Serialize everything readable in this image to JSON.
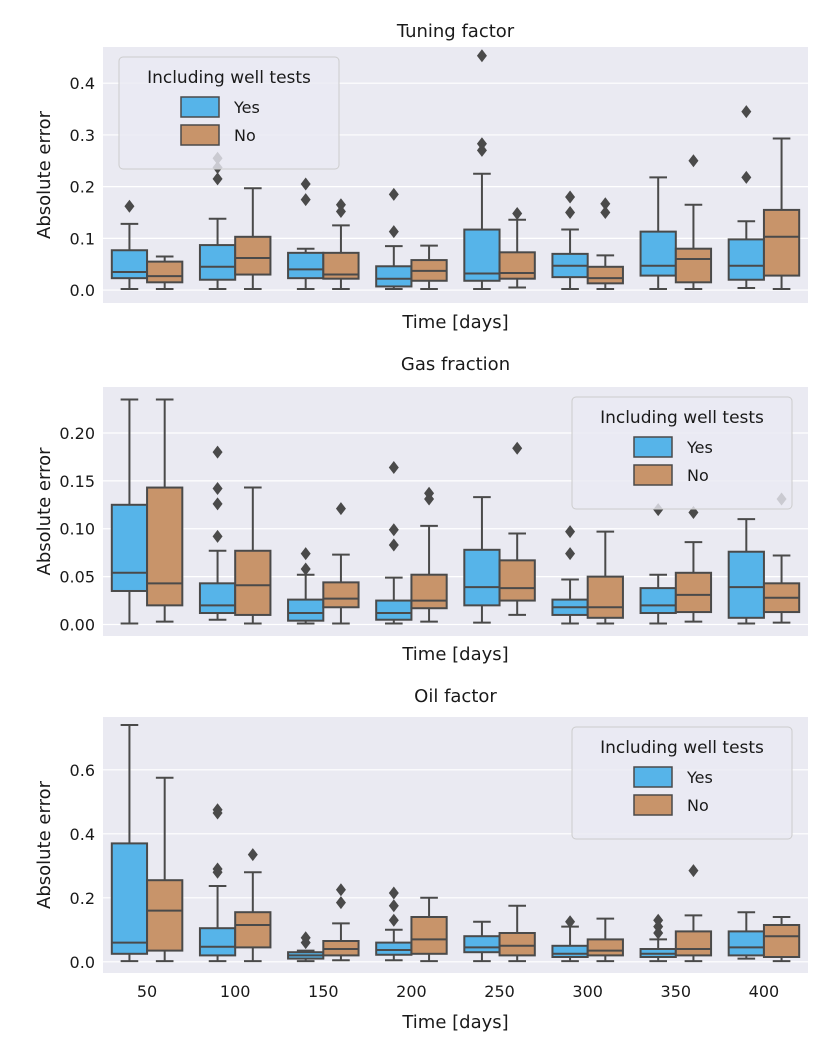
{
  "chart_data": [
    {
      "type": "box",
      "title": "Tuning factor",
      "xlabel": "Time [days]",
      "ylabel": "Absolute error",
      "show_xticklabels": false,
      "ylim": [
        -0.025,
        0.47
      ],
      "yticks": [
        0.0,
        0.1,
        0.2,
        0.3,
        0.4
      ],
      "ytick_labels": [
        "0.0",
        "0.1",
        "0.2",
        "0.3",
        "0.4"
      ],
      "legend": {
        "title": "Including well tests",
        "placement": "upper-left",
        "entries": [
          "Yes",
          "No"
        ]
      },
      "categories": [
        "50",
        "100",
        "150",
        "200",
        "250",
        "300",
        "350",
        "400"
      ],
      "series": [
        {
          "name": "Yes",
          "color": "#56b4e9",
          "boxes": [
            {
              "min": 0.002,
              "q1": 0.023,
              "median": 0.035,
              "q3": 0.077,
              "max": 0.128,
              "fliers": [
                0.162
              ]
            },
            {
              "min": 0.002,
              "q1": 0.02,
              "median": 0.045,
              "q3": 0.087,
              "max": 0.138,
              "fliers": [
                0.215,
                0.237,
                0.255
              ]
            },
            {
              "min": 0.002,
              "q1": 0.023,
              "median": 0.04,
              "q3": 0.072,
              "max": 0.08,
              "fliers": [
                0.175,
                0.205
              ]
            },
            {
              "min": 0.002,
              "q1": 0.007,
              "median": 0.022,
              "q3": 0.046,
              "max": 0.085,
              "fliers": [
                0.113,
                0.185
              ]
            },
            {
              "min": 0.002,
              "q1": 0.018,
              "median": 0.032,
              "q3": 0.117,
              "max": 0.225,
              "fliers": [
                0.27,
                0.283,
                0.453
              ]
            },
            {
              "min": 0.002,
              "q1": 0.025,
              "median": 0.047,
              "q3": 0.07,
              "max": 0.117,
              "fliers": [
                0.15,
                0.18
              ]
            },
            {
              "min": 0.002,
              "q1": 0.028,
              "median": 0.047,
              "q3": 0.113,
              "max": 0.218,
              "fliers": []
            },
            {
              "min": 0.004,
              "q1": 0.02,
              "median": 0.047,
              "q3": 0.098,
              "max": 0.133,
              "fliers": [
                0.218,
                0.345
              ]
            }
          ]
        },
        {
          "name": "No",
          "color": "#c8946a",
          "boxes": [
            {
              "min": 0.002,
              "q1": 0.015,
              "median": 0.027,
              "q3": 0.055,
              "max": 0.065,
              "fliers": []
            },
            {
              "min": 0.002,
              "q1": 0.03,
              "median": 0.062,
              "q3": 0.103,
              "max": 0.197,
              "fliers": []
            },
            {
              "min": 0.002,
              "q1": 0.022,
              "median": 0.03,
              "q3": 0.072,
              "max": 0.125,
              "fliers": [
                0.152,
                0.165
              ]
            },
            {
              "min": 0.002,
              "q1": 0.018,
              "median": 0.037,
              "q3": 0.058,
              "max": 0.086,
              "fliers": []
            },
            {
              "min": 0.005,
              "q1": 0.022,
              "median": 0.033,
              "q3": 0.073,
              "max": 0.136,
              "fliers": [
                0.148
              ]
            },
            {
              "min": 0.002,
              "q1": 0.013,
              "median": 0.023,
              "q3": 0.045,
              "max": 0.067,
              "fliers": [
                0.15,
                0.167
              ]
            },
            {
              "min": 0.002,
              "q1": 0.015,
              "median": 0.06,
              "q3": 0.08,
              "max": 0.165,
              "fliers": [
                0.25
              ]
            },
            {
              "min": 0.002,
              "q1": 0.028,
              "median": 0.103,
              "q3": 0.155,
              "max": 0.293,
              "fliers": []
            }
          ]
        }
      ]
    },
    {
      "type": "box",
      "title": "Gas fraction",
      "xlabel": "Time [days]",
      "ylabel": "Absolute error",
      "show_xticklabels": false,
      "ylim": [
        -0.012,
        0.248
      ],
      "yticks": [
        0.0,
        0.05,
        0.1,
        0.15,
        0.2
      ],
      "ytick_labels": [
        "0.00",
        "0.05",
        "0.10",
        "0.15",
        "0.20"
      ],
      "legend": {
        "title": "Including well tests",
        "placement": "upper-right",
        "entries": [
          "Yes",
          "No"
        ]
      },
      "categories": [
        "50",
        "100",
        "150",
        "200",
        "250",
        "300",
        "350",
        "400"
      ],
      "series": [
        {
          "name": "Yes",
          "color": "#56b4e9",
          "boxes": [
            {
              "min": 0.001,
              "q1": 0.035,
              "median": 0.054,
              "q3": 0.125,
              "max": 0.235,
              "fliers": []
            },
            {
              "min": 0.005,
              "q1": 0.012,
              "median": 0.02,
              "q3": 0.043,
              "max": 0.077,
              "fliers": [
                0.092,
                0.126,
                0.142,
                0.18
              ]
            },
            {
              "min": 0.001,
              "q1": 0.004,
              "median": 0.012,
              "q3": 0.026,
              "max": 0.052,
              "fliers": [
                0.058,
                0.074
              ]
            },
            {
              "min": 0.001,
              "q1": 0.005,
              "median": 0.012,
              "q3": 0.025,
              "max": 0.049,
              "fliers": [
                0.083,
                0.099,
                0.164
              ]
            },
            {
              "min": 0.002,
              "q1": 0.02,
              "median": 0.039,
              "q3": 0.078,
              "max": 0.133,
              "fliers": []
            },
            {
              "min": 0.001,
              "q1": 0.01,
              "median": 0.018,
              "q3": 0.026,
              "max": 0.047,
              "fliers": [
                0.074,
                0.097
              ]
            },
            {
              "min": 0.001,
              "q1": 0.012,
              "median": 0.02,
              "q3": 0.038,
              "max": 0.052,
              "fliers": [
                0.12
              ]
            },
            {
              "min": 0.001,
              "q1": 0.007,
              "median": 0.039,
              "q3": 0.076,
              "max": 0.11,
              "fliers": []
            }
          ]
        },
        {
          "name": "No",
          "color": "#c8946a",
          "boxes": [
            {
              "min": 0.003,
              "q1": 0.02,
              "median": 0.043,
              "q3": 0.143,
              "max": 0.235,
              "fliers": []
            },
            {
              "min": 0.001,
              "q1": 0.01,
              "median": 0.041,
              "q3": 0.077,
              "max": 0.143,
              "fliers": []
            },
            {
              "min": 0.001,
              "q1": 0.018,
              "median": 0.027,
              "q3": 0.044,
              "max": 0.073,
              "fliers": [
                0.121
              ]
            },
            {
              "min": 0.003,
              "q1": 0.017,
              "median": 0.025,
              "q3": 0.052,
              "max": 0.103,
              "fliers": [
                0.131,
                0.137
              ]
            },
            {
              "min": 0.01,
              "q1": 0.025,
              "median": 0.038,
              "q3": 0.067,
              "max": 0.095,
              "fliers": [
                0.184
              ]
            },
            {
              "min": 0.001,
              "q1": 0.007,
              "median": 0.018,
              "q3": 0.05,
              "max": 0.097,
              "fliers": []
            },
            {
              "min": 0.003,
              "q1": 0.013,
              "median": 0.031,
              "q3": 0.054,
              "max": 0.086,
              "fliers": [
                0.117
              ]
            },
            {
              "min": 0.002,
              "q1": 0.013,
              "median": 0.028,
              "q3": 0.043,
              "max": 0.072,
              "fliers": [
                0.131
              ]
            }
          ]
        }
      ]
    },
    {
      "type": "box",
      "title": "Oil factor",
      "xlabel": "Time [days]",
      "ylabel": "Absolute error",
      "show_xticklabels": true,
      "ylim": [
        -0.035,
        0.765
      ],
      "yticks": [
        0.0,
        0.2,
        0.4,
        0.6
      ],
      "ytick_labels": [
        "0.0",
        "0.2",
        "0.4",
        "0.6"
      ],
      "legend": {
        "title": "Including well tests",
        "placement": "upper-right",
        "entries": [
          "Yes",
          "No"
        ]
      },
      "categories": [
        "50",
        "100",
        "150",
        "200",
        "250",
        "300",
        "350",
        "400"
      ],
      "series": [
        {
          "name": "Yes",
          "color": "#56b4e9",
          "boxes": [
            {
              "min": 0.002,
              "q1": 0.025,
              "median": 0.06,
              "q3": 0.37,
              "max": 0.74,
              "fliers": []
            },
            {
              "min": 0.002,
              "q1": 0.02,
              "median": 0.047,
              "q3": 0.105,
              "max": 0.237,
              "fliers": [
                0.28,
                0.29,
                0.465,
                0.475
              ]
            },
            {
              "min": 0.002,
              "q1": 0.01,
              "median": 0.02,
              "q3": 0.03,
              "max": 0.035,
              "fliers": [
                0.06,
                0.075
              ]
            },
            {
              "min": 0.005,
              "q1": 0.022,
              "median": 0.037,
              "q3": 0.06,
              "max": 0.1,
              "fliers": [
                0.13,
                0.175,
                0.215
              ]
            },
            {
              "min": 0.002,
              "q1": 0.03,
              "median": 0.045,
              "q3": 0.08,
              "max": 0.125,
              "fliers": []
            },
            {
              "min": 0.002,
              "q1": 0.015,
              "median": 0.025,
              "q3": 0.05,
              "max": 0.11,
              "fliers": [
                0.125
              ]
            },
            {
              "min": 0.002,
              "q1": 0.015,
              "median": 0.025,
              "q3": 0.04,
              "max": 0.07,
              "fliers": [
                0.09,
                0.11,
                0.13
              ]
            },
            {
              "min": 0.01,
              "q1": 0.02,
              "median": 0.045,
              "q3": 0.095,
              "max": 0.155,
              "fliers": []
            }
          ]
        },
        {
          "name": "No",
          "color": "#c8946a",
          "boxes": [
            {
              "min": 0.002,
              "q1": 0.035,
              "median": 0.16,
              "q3": 0.255,
              "max": 0.575,
              "fliers": []
            },
            {
              "min": 0.002,
              "q1": 0.045,
              "median": 0.115,
              "q3": 0.155,
              "max": 0.28,
              "fliers": [
                0.335
              ]
            },
            {
              "min": 0.005,
              "q1": 0.02,
              "median": 0.04,
              "q3": 0.065,
              "max": 0.12,
              "fliers": [
                0.185,
                0.225
              ]
            },
            {
              "min": 0.002,
              "q1": 0.025,
              "median": 0.07,
              "q3": 0.14,
              "max": 0.2,
              "fliers": []
            },
            {
              "min": 0.002,
              "q1": 0.02,
              "median": 0.05,
              "q3": 0.09,
              "max": 0.175,
              "fliers": []
            },
            {
              "min": 0.002,
              "q1": 0.02,
              "median": 0.035,
              "q3": 0.07,
              "max": 0.135,
              "fliers": []
            },
            {
              "min": 0.002,
              "q1": 0.02,
              "median": 0.04,
              "q3": 0.095,
              "max": 0.145,
              "fliers": [
                0.285
              ]
            },
            {
              "min": 0.002,
              "q1": 0.015,
              "median": 0.08,
              "q3": 0.115,
              "max": 0.14,
              "fliers": []
            }
          ]
        }
      ]
    }
  ]
}
